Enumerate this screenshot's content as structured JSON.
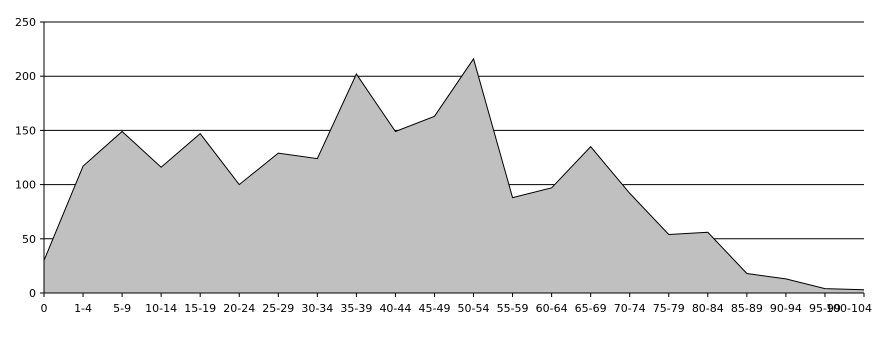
{
  "chart_data": {
    "type": "area",
    "title": "",
    "xlabel": "",
    "ylabel": "",
    "ylim": [
      0,
      250
    ],
    "yticks": [
      0,
      50,
      100,
      150,
      200,
      250
    ],
    "grid": true,
    "legend": "none",
    "categories": [
      "0",
      "1-4",
      "5-9",
      "10-14",
      "15-19",
      "20-24",
      "25-29",
      "30-34",
      "35-39",
      "40-44",
      "45-49",
      "50-54",
      "55-59",
      "60-64",
      "65-69",
      "70-74",
      "75-79",
      "80-84",
      "85-89",
      "90-94",
      "95-99",
      "100-104"
    ],
    "series": [
      {
        "values": [
          30,
          117,
          149,
          116,
          147,
          100,
          129,
          124,
          202,
          149,
          163,
          216,
          88,
          97,
          135,
          92,
          54,
          56,
          18,
          13,
          4,
          3
        ]
      }
    ],
    "colors": {
      "fill": "#c0c0c0",
      "line": "#000000",
      "grid": "#000000",
      "axis": "#000000"
    }
  }
}
